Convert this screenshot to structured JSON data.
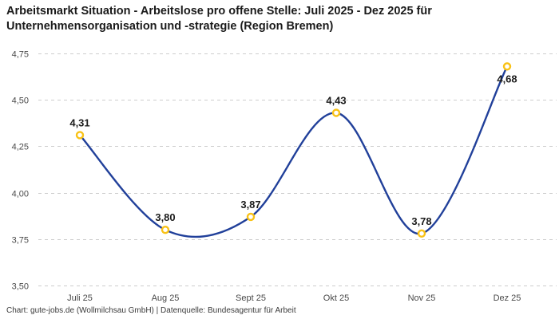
{
  "header": {
    "title_line1": "Arbeitsmarkt Situation - Arbeitslose pro offene Stelle: Juli 2025 - Dez 2025 für",
    "title_line2": "Unternehmensorganisation und -strategie (Region Bremen)"
  },
  "footer": {
    "credit": "Chart: gute-jobs.de (Wollmilchsau GmbH) | Datenquelle: Bundesagentur für Arbeit"
  },
  "chart_data": {
    "type": "line",
    "title": "Arbeitsmarkt Situation - Arbeitslose pro offene Stelle: Juli 2025 - Dez 2025 für Unternehmensorganisation und -strategie (Region Bremen)",
    "categories": [
      "Juli 25",
      "Aug 25",
      "Sept 25",
      "Okt 25",
      "Nov 25",
      "Dez 25"
    ],
    "values": [
      4.31,
      3.8,
      3.87,
      4.43,
      3.78,
      4.68
    ],
    "value_labels": [
      "4,31",
      "3,80",
      "3,87",
      "4,43",
      "3,78",
      "4,68"
    ],
    "value_label_positions": [
      "above",
      "above",
      "above",
      "above",
      "above",
      "below"
    ],
    "yticks": [
      {
        "value": 3.5,
        "label": "3,50"
      },
      {
        "value": 3.75,
        "label": "3,75"
      },
      {
        "value": 4.0,
        "label": "4,00"
      },
      {
        "value": 4.25,
        "label": "4,25"
      },
      {
        "value": 4.5,
        "label": "4,50"
      },
      {
        "value": 4.75,
        "label": "4,75"
      }
    ],
    "ylim": [
      3.5,
      4.75
    ],
    "xlabel": "",
    "ylabel": "",
    "legend": "none",
    "grid": "horizontal-dashed",
    "interpolation": "curved",
    "line_color": "#21409a",
    "marker_color": "#f9c216",
    "marker_fill": "#ffffff",
    "grid_color": "#cdcdcd"
  }
}
